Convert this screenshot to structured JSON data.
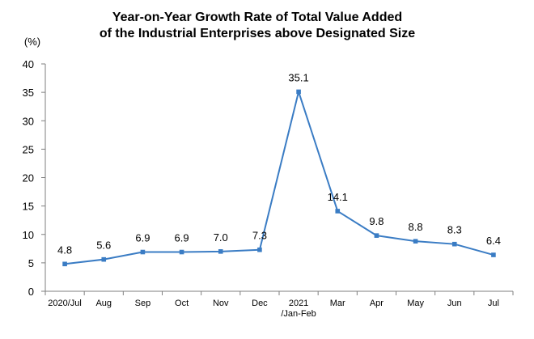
{
  "chart_data": {
    "type": "line",
    "title_lines": [
      "Year-on-Year Growth Rate of Total Value Added",
      "of the Industrial Enterprises above Designated Size"
    ],
    "unit_label": "(%)",
    "categories": [
      [
        "2020/Jul"
      ],
      [
        "Aug"
      ],
      [
        "Sep"
      ],
      [
        "Oct"
      ],
      [
        "Nov"
      ],
      [
        "Dec"
      ],
      [
        "2021",
        "/Jan-Feb"
      ],
      [
        "Mar"
      ],
      [
        "Apr"
      ],
      [
        "May"
      ],
      [
        "Jun"
      ],
      [
        "Jul"
      ]
    ],
    "values": [
      4.8,
      5.6,
      6.9,
      6.9,
      7.0,
      7.3,
      35.1,
      14.1,
      9.8,
      8.8,
      8.3,
      6.4
    ],
    "data_labels": [
      "4.8",
      "5.6",
      "6.9",
      "6.9",
      "7.0",
      "7.3",
      "35.1",
      "14.1",
      "9.8",
      "8.8",
      "8.3",
      "6.4"
    ],
    "ylim": [
      0,
      40
    ],
    "yticks": [
      0,
      5,
      10,
      15,
      20,
      25,
      30,
      35,
      40
    ],
    "grid": false,
    "legend": "none",
    "series_color": "#3a7cc4",
    "axis_color": "#7f7f7f"
  }
}
